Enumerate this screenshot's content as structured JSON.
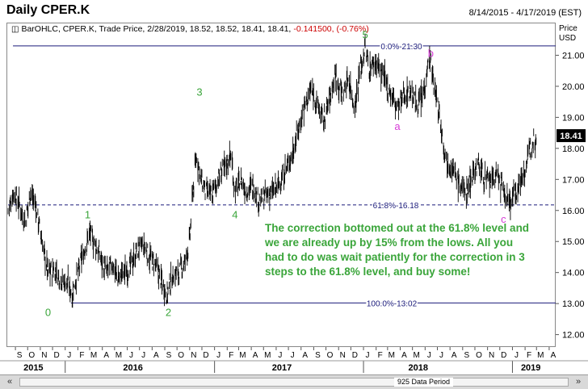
{
  "header": {
    "title": "Daily CPER.K",
    "date_range": "8/14/2015 - 4/17/2019 (EST)"
  },
  "legend": {
    "text": "BarOHLC, CPER.K, Trade Price, 2/28/2019, 18.52, 18.52, 18.41, 18.41,",
    "change": "-0.141500, (-0.76%)"
  },
  "price_axis": {
    "title_line1": "Price",
    "title_line2": "USD",
    "last_price": "18.41"
  },
  "annotation": "The correction bottomed out at the 61.8% level and we are already up by 15% from the lows. All you had to do was wait patiently for the correction in 3 steps to the 61.8% level, and buy some!",
  "scrollbar": {
    "left_icon": "double-chevron-left-icon",
    "right_icon": "double-chevron-right-icon",
    "period_label": "925 Data Period"
  },
  "colors": {
    "bars": "#000000",
    "fib_lines": "#1a1a7a",
    "wave_labels": "#3aa53a",
    "corrective_labels": "#d63cd6",
    "annotation": "#3aa53a",
    "negative": "#cc0000"
  },
  "chart_data": {
    "type": "ohlc",
    "title": "Daily CPER.K",
    "x_range": [
      "2015-08-14",
      "2019-04-17"
    ],
    "ylim": [
      11.6,
      22.0
    ],
    "y_ticks": [
      12.0,
      13.0,
      14.0,
      15.0,
      16.0,
      17.0,
      18.0,
      19.0,
      20.0,
      21.0
    ],
    "y_tick_labels": [
      "12.00",
      "13.00",
      "14.00",
      "15.00",
      "16.00",
      "17.00",
      "18.00",
      "19.00",
      "20.00",
      "21.00"
    ],
    "month_ticks": [
      {
        "label": "S",
        "date": "2015-09"
      },
      {
        "label": "O",
        "date": "2015-10"
      },
      {
        "label": "N",
        "date": "2015-11"
      },
      {
        "label": "D",
        "date": "2015-12"
      },
      {
        "label": "J",
        "date": "2016-01"
      },
      {
        "label": "F",
        "date": "2016-02"
      },
      {
        "label": "M",
        "date": "2016-03"
      },
      {
        "label": "A",
        "date": "2016-04"
      },
      {
        "label": "M",
        "date": "2016-05"
      },
      {
        "label": "J",
        "date": "2016-06"
      },
      {
        "label": "J",
        "date": "2016-07"
      },
      {
        "label": "A",
        "date": "2016-08"
      },
      {
        "label": "S",
        "date": "2016-09"
      },
      {
        "label": "O",
        "date": "2016-10"
      },
      {
        "label": "N",
        "date": "2016-11"
      },
      {
        "label": "D",
        "date": "2016-12"
      },
      {
        "label": "J",
        "date": "2017-01"
      },
      {
        "label": "F",
        "date": "2017-02"
      },
      {
        "label": "M",
        "date": "2017-03"
      },
      {
        "label": "A",
        "date": "2017-04"
      },
      {
        "label": "M",
        "date": "2017-05"
      },
      {
        "label": "J",
        "date": "2017-06"
      },
      {
        "label": "J",
        "date": "2017-07"
      },
      {
        "label": "A",
        "date": "2017-08"
      },
      {
        "label": "S",
        "date": "2017-09"
      },
      {
        "label": "O",
        "date": "2017-10"
      },
      {
        "label": "N",
        "date": "2017-11"
      },
      {
        "label": "D",
        "date": "2017-12"
      },
      {
        "label": "J",
        "date": "2018-01"
      },
      {
        "label": "F",
        "date": "2018-02"
      },
      {
        "label": "M",
        "date": "2018-03"
      },
      {
        "label": "A",
        "date": "2018-04"
      },
      {
        "label": "M",
        "date": "2018-05"
      },
      {
        "label": "J",
        "date": "2018-06"
      },
      {
        "label": "J",
        "date": "2018-07"
      },
      {
        "label": "A",
        "date": "2018-08"
      },
      {
        "label": "S",
        "date": "2018-09"
      },
      {
        "label": "O",
        "date": "2018-10"
      },
      {
        "label": "N",
        "date": "2018-11"
      },
      {
        "label": "D",
        "date": "2018-12"
      },
      {
        "label": "J",
        "date": "2019-01"
      },
      {
        "label": "F",
        "date": "2019-02"
      },
      {
        "label": "M",
        "date": "2019-03"
      },
      {
        "label": "A",
        "date": "2019-04"
      }
    ],
    "year_labels": [
      {
        "label": "2015",
        "date": "2015-10-15"
      },
      {
        "label": "2016",
        "date": "2016-06-15"
      },
      {
        "label": "2017",
        "date": "2017-06-15"
      },
      {
        "label": "2018",
        "date": "2018-05-15"
      },
      {
        "label": "2019",
        "date": "2019-02-15"
      }
    ],
    "fib_levels": [
      {
        "label": "0.0%-21.30",
        "value": 21.3,
        "start": "2015-08-26",
        "end": "2019-04-17"
      },
      {
        "label": "61.8%-16.18",
        "value": 16.18,
        "start": "2015-08-14",
        "end": "2019-04-17"
      },
      {
        "label": "100.0%-13.02",
        "value": 13.02,
        "start": "2016-01-15",
        "end": "2019-04-17"
      }
    ],
    "wave_labels": [
      {
        "label": "0",
        "date": "2015-11-20",
        "value": 12.6,
        "kind": "impulse"
      },
      {
        "label": "1",
        "date": "2016-02-25",
        "value": 15.75,
        "kind": "impulse"
      },
      {
        "label": "2",
        "date": "2016-09-10",
        "value": 12.6,
        "kind": "impulse"
      },
      {
        "label": "3",
        "date": "2016-11-25",
        "value": 19.7,
        "kind": "impulse"
      },
      {
        "label": "4",
        "date": "2017-02-20",
        "value": 15.75,
        "kind": "impulse"
      },
      {
        "label": "5",
        "date": "2018-01-05",
        "value": 21.55,
        "kind": "impulse"
      },
      {
        "label": "a",
        "date": "2018-03-25",
        "value": 18.6,
        "kind": "corrective"
      },
      {
        "label": "b",
        "date": "2018-06-15",
        "value": 20.95,
        "kind": "corrective"
      },
      {
        "label": "c",
        "date": "2018-12-10",
        "value": 15.6,
        "kind": "corrective"
      }
    ],
    "price_path": [
      [
        "2015-08-14",
        16.0
      ],
      [
        "2015-08-28",
        16.6
      ],
      [
        "2015-09-10",
        16.2
      ],
      [
        "2015-09-25",
        15.6
      ],
      [
        "2015-10-08",
        16.6
      ],
      [
        "2015-10-20",
        16.2
      ],
      [
        "2015-11-05",
        15.0
      ],
      [
        "2015-11-20",
        14.0
      ],
      [
        "2015-12-05",
        14.1
      ],
      [
        "2015-12-20",
        13.8
      ],
      [
        "2016-01-10",
        13.6
      ],
      [
        "2016-01-18",
        13.3
      ],
      [
        "2016-02-01",
        14.0
      ],
      [
        "2016-02-15",
        14.6
      ],
      [
        "2016-03-01",
        15.3
      ],
      [
        "2016-03-10",
        15.0
      ],
      [
        "2016-03-25",
        14.6
      ],
      [
        "2016-04-10",
        14.0
      ],
      [
        "2016-04-25",
        14.3
      ],
      [
        "2016-05-10",
        13.8
      ],
      [
        "2016-05-25",
        14.0
      ],
      [
        "2016-06-10",
        14.2
      ],
      [
        "2016-06-25",
        14.7
      ],
      [
        "2016-07-10",
        14.9
      ],
      [
        "2016-07-25",
        14.5
      ],
      [
        "2016-08-10",
        14.2
      ],
      [
        "2016-08-25",
        13.7
      ],
      [
        "2016-09-07",
        13.3
      ],
      [
        "2016-09-20",
        13.9
      ],
      [
        "2016-10-05",
        14.0
      ],
      [
        "2016-10-20",
        14.3
      ],
      [
        "2016-11-01",
        15.0
      ],
      [
        "2016-11-08",
        16.5
      ],
      [
        "2016-11-18",
        17.8
      ],
      [
        "2016-11-28",
        17.0
      ],
      [
        "2016-12-10",
        16.6
      ],
      [
        "2016-12-25",
        16.5
      ],
      [
        "2017-01-10",
        17.0
      ],
      [
        "2017-01-25",
        17.4
      ],
      [
        "2017-02-10",
        17.8
      ],
      [
        "2017-02-20",
        16.6
      ],
      [
        "2017-03-05",
        17.0
      ],
      [
        "2017-03-20",
        16.6
      ],
      [
        "2017-04-05",
        16.8
      ],
      [
        "2017-04-20",
        16.3
      ],
      [
        "2017-05-10",
        16.5
      ],
      [
        "2017-05-25",
        16.6
      ],
      [
        "2017-06-10",
        16.9
      ],
      [
        "2017-06-25",
        17.3
      ],
      [
        "2017-07-10",
        17.8
      ],
      [
        "2017-07-25",
        18.6
      ],
      [
        "2017-08-10",
        19.4
      ],
      [
        "2017-08-25",
        19.9
      ],
      [
        "2017-09-10",
        19.4
      ],
      [
        "2017-09-25",
        18.9
      ],
      [
        "2017-10-10",
        19.6
      ],
      [
        "2017-10-25",
        20.4
      ],
      [
        "2017-11-10",
        19.7
      ],
      [
        "2017-11-25",
        20.3
      ],
      [
        "2017-12-10",
        19.3
      ],
      [
        "2017-12-25",
        20.6
      ],
      [
        "2018-01-05",
        21.2
      ],
      [
        "2018-01-15",
        20.6
      ],
      [
        "2018-02-01",
        20.8
      ],
      [
        "2018-02-15",
        20.4
      ],
      [
        "2018-03-01",
        20.0
      ],
      [
        "2018-03-15",
        19.6
      ],
      [
        "2018-03-25",
        19.3
      ],
      [
        "2018-04-10",
        19.7
      ],
      [
        "2018-04-25",
        19.9
      ],
      [
        "2018-05-10",
        19.4
      ],
      [
        "2018-05-25",
        19.6
      ],
      [
        "2018-06-05",
        20.5
      ],
      [
        "2018-06-12",
        21.0
      ],
      [
        "2018-06-25",
        19.8
      ],
      [
        "2018-07-05",
        19.2
      ],
      [
        "2018-07-15",
        18.2
      ],
      [
        "2018-07-25",
        17.6
      ],
      [
        "2018-08-10",
        17.3
      ],
      [
        "2018-08-25",
        16.8
      ],
      [
        "2018-09-10",
        16.6
      ],
      [
        "2018-09-25",
        17.2
      ],
      [
        "2018-10-10",
        17.5
      ],
      [
        "2018-10-25",
        17.0
      ],
      [
        "2018-11-10",
        16.9
      ],
      [
        "2018-11-25",
        17.2
      ],
      [
        "2018-12-10",
        16.6
      ],
      [
        "2018-12-25",
        16.3
      ],
      [
        "2019-01-05",
        16.5
      ],
      [
        "2019-01-20",
        16.9
      ],
      [
        "2019-02-05",
        17.5
      ],
      [
        "2019-02-20",
        18.3
      ],
      [
        "2019-02-28",
        18.41
      ]
    ]
  }
}
